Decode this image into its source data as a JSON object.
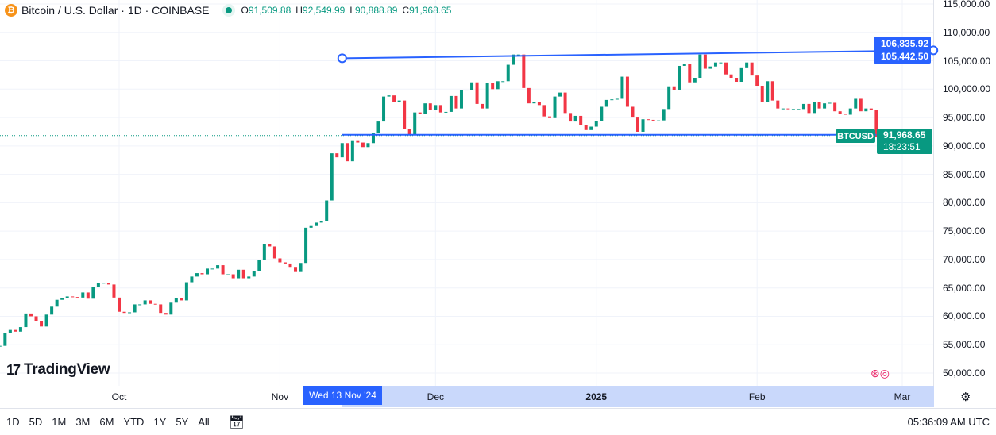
{
  "header": {
    "symbol_title": "Bitcoin / U.S. Dollar · 1D · COINBASE",
    "ohlc": {
      "o_label": "O",
      "o": "91,509.88",
      "h_label": "H",
      "h": "92,549.99",
      "l_label": "L",
      "l": "90,888.89",
      "c_label": "C",
      "c": "91,968.65"
    }
  },
  "logo": "TradingView",
  "price_axis": {
    "labels": [
      "115,000.00",
      "110,000.00",
      "105,000.00",
      "100,000.00",
      "95,000.00",
      "90,000.00",
      "85,000.00",
      "80,000.00",
      "75,000.00",
      "70,000.00",
      "65,000.00",
      "60,000.00",
      "55,000.00",
      "50,000.00"
    ],
    "trendline_right_value": "106,835.92",
    "trendline_left_value": "105,442.50",
    "symbol_tag": "BTCUSD",
    "last_price": "91,968.65",
    "countdown": "18:23:51"
  },
  "time_axis": {
    "labels": [
      {
        "text": "Oct",
        "date": "2024-10-01",
        "bold": false
      },
      {
        "text": "Nov",
        "date": "2024-11-01",
        "bold": false
      },
      {
        "text": "Dec",
        "date": "2024-12-01",
        "bold": false
      },
      {
        "text": "2025",
        "date": "2025-01-01",
        "bold": true
      },
      {
        "text": "Feb",
        "date": "2025-02-01",
        "bold": false
      },
      {
        "text": "Mar",
        "date": "2025-03-01",
        "bold": false
      }
    ],
    "crosshair_date": "Wed 13 Nov '24"
  },
  "toolbar": {
    "ranges": [
      "1D",
      "5D",
      "1M",
      "3M",
      "6M",
      "YTD",
      "1Y",
      "5Y",
      "All"
    ],
    "clock": "05:36:09 AM UTC"
  },
  "colors": {
    "up": "#089981",
    "down": "#f23645",
    "drawing": "#2962ff",
    "range_highlight": "#c9d8fb"
  },
  "chart_data": {
    "type": "candlestick",
    "title": "Bitcoin / U.S. Dollar · 1D · COINBASE",
    "ylim": [
      50000,
      115000
    ],
    "grid": true,
    "last_candle": {
      "date": "2025-02-25",
      "open": 91509.88,
      "high": 92549.99,
      "low": 90888.89,
      "close": 91968.65
    },
    "closes": [
      [
        "2024-09-08",
        54800
      ],
      [
        "2024-09-09",
        57000
      ],
      [
        "2024-09-10",
        57600
      ],
      [
        "2024-09-11",
        57300
      ],
      [
        "2024-09-12",
        58100
      ],
      [
        "2024-09-13",
        60500
      ],
      [
        "2024-09-14",
        60000
      ],
      [
        "2024-09-15",
        59200
      ],
      [
        "2024-09-16",
        58200
      ],
      [
        "2024-09-17",
        60300
      ],
      [
        "2024-09-18",
        61700
      ],
      [
        "2024-09-19",
        62900
      ],
      [
        "2024-09-20",
        63200
      ],
      [
        "2024-09-21",
        63500
      ],
      [
        "2024-09-22",
        63400
      ],
      [
        "2024-09-23",
        63300
      ],
      [
        "2024-09-24",
        64200
      ],
      [
        "2024-09-25",
        63100
      ],
      [
        "2024-09-26",
        65200
      ],
      [
        "2024-09-27",
        65800
      ],
      [
        "2024-09-28",
        65900
      ],
      [
        "2024-09-29",
        65600
      ],
      [
        "2024-09-30",
        63300
      ],
      [
        "2024-10-01",
        60800
      ],
      [
        "2024-10-02",
        60600
      ],
      [
        "2024-10-03",
        60700
      ],
      [
        "2024-10-04",
        62100
      ],
      [
        "2024-10-05",
        62100
      ],
      [
        "2024-10-06",
        62800
      ],
      [
        "2024-10-07",
        62200
      ],
      [
        "2024-10-08",
        62100
      ],
      [
        "2024-10-09",
        60600
      ],
      [
        "2024-10-10",
        60300
      ],
      [
        "2024-10-11",
        62400
      ],
      [
        "2024-10-12",
        63200
      ],
      [
        "2024-10-13",
        62800
      ],
      [
        "2024-10-14",
        66000
      ],
      [
        "2024-10-15",
        67000
      ],
      [
        "2024-10-16",
        67600
      ],
      [
        "2024-10-17",
        67400
      ],
      [
        "2024-10-18",
        68400
      ],
      [
        "2024-10-19",
        68400
      ],
      [
        "2024-10-20",
        69000
      ],
      [
        "2024-10-21",
        67400
      ],
      [
        "2024-10-22",
        67400
      ],
      [
        "2024-10-23",
        66700
      ],
      [
        "2024-10-24",
        68200
      ],
      [
        "2024-10-25",
        66700
      ],
      [
        "2024-10-26",
        67000
      ],
      [
        "2024-10-27",
        68000
      ],
      [
        "2024-10-28",
        69900
      ],
      [
        "2024-10-29",
        72700
      ],
      [
        "2024-10-30",
        72300
      ],
      [
        "2024-10-31",
        70200
      ],
      [
        "2024-11-01",
        69500
      ],
      [
        "2024-11-02",
        69300
      ],
      [
        "2024-11-03",
        68700
      ],
      [
        "2024-11-04",
        67800
      ],
      [
        "2024-11-05",
        69400
      ],
      [
        "2024-11-06",
        75600
      ],
      [
        "2024-11-07",
        75900
      ],
      [
        "2024-11-08",
        76500
      ],
      [
        "2024-11-09",
        76700
      ],
      [
        "2024-11-10",
        80400
      ],
      [
        "2024-11-11",
        88700
      ],
      [
        "2024-11-12",
        88000
      ],
      [
        "2024-11-13",
        90500
      ],
      [
        "2024-11-14",
        87300
      ],
      [
        "2024-11-15",
        91000
      ],
      [
        "2024-11-16",
        90600
      ],
      [
        "2024-11-17",
        89800
      ],
      [
        "2024-11-18",
        90500
      ],
      [
        "2024-11-19",
        92300
      ],
      [
        "2024-11-20",
        94300
      ],
      [
        "2024-11-21",
        98700
      ],
      [
        "2024-11-22",
        98900
      ],
      [
        "2024-11-23",
        97700
      ],
      [
        "2024-11-24",
        98000
      ],
      [
        "2024-11-25",
        93000
      ],
      [
        "2024-11-26",
        91900
      ],
      [
        "2024-11-27",
        95900
      ],
      [
        "2024-11-28",
        95600
      ],
      [
        "2024-11-29",
        97500
      ],
      [
        "2024-11-30",
        96400
      ],
      [
        "2024-12-01",
        97200
      ],
      [
        "2024-12-02",
        95900
      ],
      [
        "2024-12-03",
        96000
      ],
      [
        "2024-12-04",
        98800
      ],
      [
        "2024-12-05",
        96600
      ],
      [
        "2024-12-06",
        99900
      ],
      [
        "2024-12-07",
        99900
      ],
      [
        "2024-12-08",
        101200
      ],
      [
        "2024-12-09",
        97400
      ],
      [
        "2024-12-10",
        96600
      ],
      [
        "2024-12-11",
        101100
      ],
      [
        "2024-12-12",
        100000
      ],
      [
        "2024-12-13",
        101400
      ],
      [
        "2024-12-14",
        101400
      ],
      [
        "2024-12-15",
        104300
      ],
      [
        "2024-12-16",
        106100
      ],
      [
        "2024-12-17",
        106100
      ],
      [
        "2024-12-18",
        100200
      ],
      [
        "2024-12-19",
        97500
      ],
      [
        "2024-12-20",
        97800
      ],
      [
        "2024-12-21",
        97200
      ],
      [
        "2024-12-22",
        95200
      ],
      [
        "2024-12-23",
        94900
      ],
      [
        "2024-12-24",
        98700
      ],
      [
        "2024-12-25",
        99400
      ],
      [
        "2024-12-26",
        95800
      ],
      [
        "2024-12-27",
        94300
      ],
      [
        "2024-12-28",
        95300
      ],
      [
        "2024-12-29",
        93700
      ],
      [
        "2024-12-30",
        92800
      ],
      [
        "2024-12-31",
        93400
      ],
      [
        "2025-01-01",
        94400
      ],
      [
        "2025-01-02",
        96900
      ],
      [
        "2025-01-03",
        98100
      ],
      [
        "2025-01-04",
        98200
      ],
      [
        "2025-01-05",
        98300
      ],
      [
        "2025-01-06",
        102200
      ],
      [
        "2025-01-07",
        96900
      ],
      [
        "2025-01-08",
        95000
      ],
      [
        "2025-01-09",
        92500
      ],
      [
        "2025-01-10",
        94700
      ],
      [
        "2025-01-11",
        94600
      ],
      [
        "2025-01-12",
        94500
      ],
      [
        "2025-01-13",
        94500
      ],
      [
        "2025-01-14",
        96500
      ],
      [
        "2025-01-15",
        100500
      ],
      [
        "2025-01-16",
        99900
      ],
      [
        "2025-01-17",
        104100
      ],
      [
        "2025-01-18",
        104400
      ],
      [
        "2025-01-19",
        101200
      ],
      [
        "2025-01-20",
        102000
      ],
      [
        "2025-01-21",
        106100
      ],
      [
        "2025-01-22",
        103600
      ],
      [
        "2025-01-23",
        104000
      ],
      [
        "2025-01-24",
        104700
      ],
      [
        "2025-01-25",
        104700
      ],
      [
        "2025-01-26",
        102600
      ],
      [
        "2025-01-27",
        102000
      ],
      [
        "2025-01-28",
        101300
      ],
      [
        "2025-01-29",
        103700
      ],
      [
        "2025-01-30",
        104700
      ],
      [
        "2025-01-31",
        102400
      ],
      [
        "2025-02-01",
        100600
      ],
      [
        "2025-02-02",
        97700
      ],
      [
        "2025-02-03",
        101400
      ],
      [
        "2025-02-04",
        98000
      ],
      [
        "2025-02-05",
        96600
      ],
      [
        "2025-02-06",
        96600
      ],
      [
        "2025-02-07",
        96500
      ],
      [
        "2025-02-08",
        96500
      ],
      [
        "2025-02-09",
        96500
      ],
      [
        "2025-02-10",
        97400
      ],
      [
        "2025-02-11",
        95800
      ],
      [
        "2025-02-12",
        97800
      ],
      [
        "2025-02-13",
        96600
      ],
      [
        "2025-02-14",
        97500
      ],
      [
        "2025-02-15",
        97600
      ],
      [
        "2025-02-16",
        96100
      ],
      [
        "2025-02-17",
        95700
      ],
      [
        "2025-02-18",
        95500
      ],
      [
        "2025-02-19",
        96600
      ],
      [
        "2025-02-20",
        98300
      ],
      [
        "2025-02-21",
        96100
      ],
      [
        "2025-02-22",
        96600
      ],
      [
        "2025-02-23",
        96300
      ],
      [
        "2025-02-24",
        91509.88
      ],
      [
        "2025-02-25",
        91968.65
      ]
    ],
    "trendlines": [
      {
        "from": {
          "date": "2024-11-13",
          "price": 105442.5
        },
        "to": {
          "date": "2025-03-07",
          "price": 106835.92
        }
      },
      {
        "from": {
          "date": "2024-11-13",
          "price": 91968.65
        },
        "to": {
          "date": "2025-02-24",
          "price": 91968.65
        }
      }
    ]
  }
}
